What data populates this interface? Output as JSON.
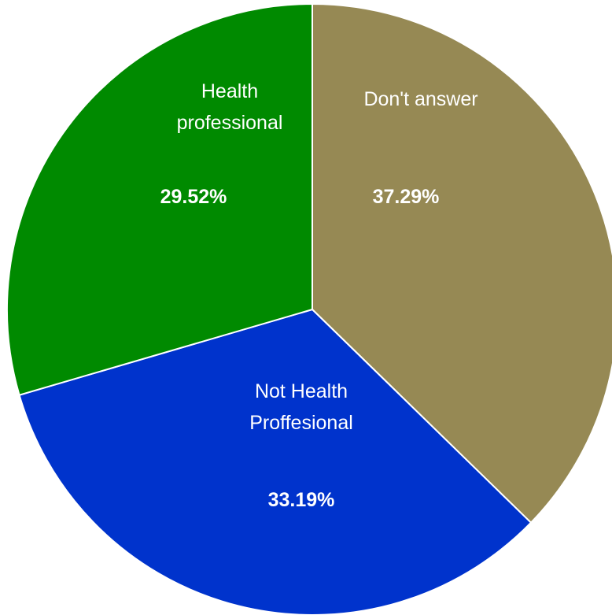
{
  "chart_data": {
    "type": "pie",
    "title": "",
    "slices": [
      {
        "label": [
          "Don't answer"
        ],
        "value": 37.29,
        "value_label": "37.29%",
        "color": "#968954"
      },
      {
        "label": [
          "Not Health",
          "Proffesional"
        ],
        "value": 33.19,
        "value_label": "33.19%",
        "color": "#0033cc"
      },
      {
        "label": [
          "Health",
          "professional"
        ],
        "value": 29.52,
        "value_label": "29.52%",
        "color": "#008a00"
      }
    ]
  }
}
